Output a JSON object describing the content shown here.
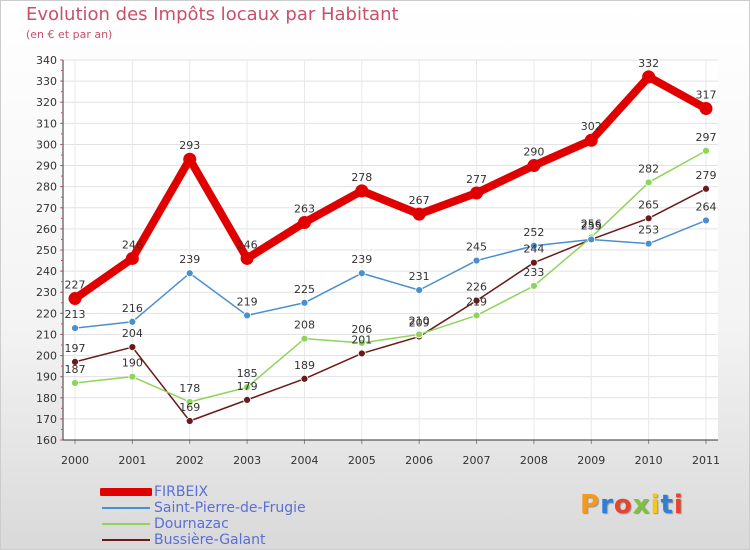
{
  "header": {
    "title": "Evolution des Impôts locaux par Habitant",
    "subtitle": "(en € et par an)"
  },
  "logo": {
    "text": "Proxiti",
    "letter_colors": [
      "#f39a1e",
      "#2f7fd6",
      "#e8432e",
      "#7fc241",
      "#f3c81e",
      "#2f7fd6",
      "#e8432e"
    ]
  },
  "chart_data": {
    "type": "line",
    "title": "Evolution des Impôts locaux par Habitant",
    "subtitle": "(en € et par an)",
    "x": [
      "2000",
      "2001",
      "2002",
      "2003",
      "2004",
      "2005",
      "2006",
      "2007",
      "2008",
      "2009",
      "2010",
      "2011"
    ],
    "ylim": [
      160,
      340
    ],
    "yticks": [
      160,
      170,
      180,
      190,
      200,
      210,
      220,
      230,
      240,
      250,
      260,
      270,
      280,
      290,
      300,
      310,
      320,
      330,
      340
    ],
    "grid": true,
    "legend": "bottom-left",
    "series": [
      {
        "name": "FIRBEIX",
        "color": "#e00000",
        "values": [
          227,
          246,
          293,
          246,
          263,
          278,
          267,
          277,
          290,
          302,
          332,
          317
        ]
      },
      {
        "name": "Saint-Pierre-de-Frugie",
        "color": "#4a8fd0",
        "values": [
          213,
          216,
          239,
          219,
          225,
          239,
          231,
          245,
          252,
          255,
          253,
          264
        ]
      },
      {
        "name": "Dournazac",
        "color": "#8fd45a",
        "values": [
          187,
          190,
          178,
          185,
          208,
          206,
          210,
          219,
          233,
          256,
          282,
          297
        ]
      },
      {
        "name": "Bussière-Galant",
        "color": "#6b1a1a",
        "values": [
          197,
          204,
          169,
          179,
          189,
          201,
          209,
          226,
          244,
          255,
          265,
          279
        ]
      }
    ]
  }
}
